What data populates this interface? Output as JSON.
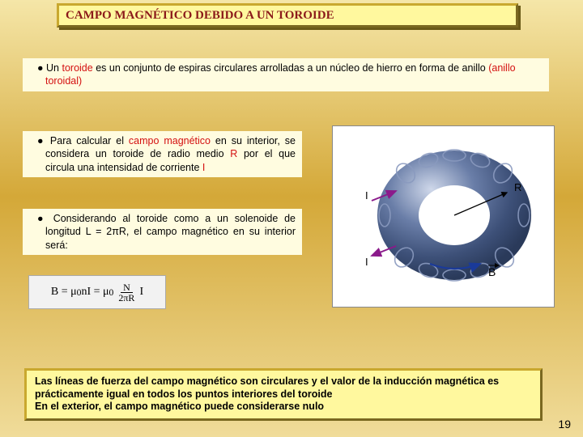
{
  "title": "CAMPO MAGNÉTICO DEBIDO A UN TOROIDE",
  "para1": {
    "prefix": "Un ",
    "kw1": "toroide",
    "mid": " es un conjunto de espiras circulares arrolladas a un núcleo de hierro en forma de anillo ",
    "kw2": "(anillo toroidal)"
  },
  "para2": {
    "prefix": "Para calcular el ",
    "kw1": "campo magnético",
    "mid1": " en su interior, se considera un toroide de radio medio ",
    "kw2": "R",
    "mid2": " por el que circula una intensidad de corriente ",
    "kw3": "I"
  },
  "para3": "Considerando al toroide como a un solenoide de longitud L = 2πR, el campo magnético en su interior será:",
  "formula": {
    "lhs": "B = μ",
    "sub0": "0",
    "mid": "nI = μ",
    "frac_num": "N",
    "frac_den": "2πR",
    "rhs": "I"
  },
  "diagram": {
    "labels": {
      "I1": "I",
      "I2": "I",
      "R": "R",
      "B": "B"
    },
    "colors": {
      "toroid_dark": "#2a3a5a",
      "toroid_mid": "#3d5078",
      "toroid_light": "#6a7ea8",
      "toroid_hi": "#cfd8ea",
      "loop": "#8a9abf",
      "arrow_I": "#8b1a8b",
      "arrow_B": "#1a3a9a",
      "arrow_R": "#000000"
    }
  },
  "bottom": "Las líneas de fuerza del campo magnético son circulares y el valor de la inducción magnética es prácticamente igual en todos los puntos interiores del toroide\nEn el exterior, el campo magnético puede considerarse nulo",
  "page": "19"
}
